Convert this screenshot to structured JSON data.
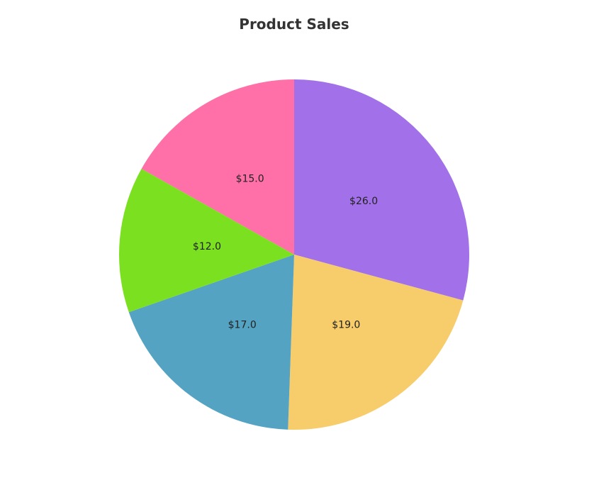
{
  "chart_data": {
    "type": "pie",
    "title": "Product Sales",
    "slices": [
      {
        "label": "$26.0",
        "value": 26.0,
        "color": "#a270e8"
      },
      {
        "label": "$19.0",
        "value": 19.0,
        "color": "#f7cc6b"
      },
      {
        "label": "$17.0",
        "value": 17.0,
        "color": "#54a3c3"
      },
      {
        "label": "$12.0",
        "value": 12.0,
        "color": "#7ae01f"
      },
      {
        "label": "$15.0",
        "value": 15.0,
        "color": "#ff6fa8"
      }
    ],
    "start_angle": "top",
    "direction": "clockwise"
  }
}
